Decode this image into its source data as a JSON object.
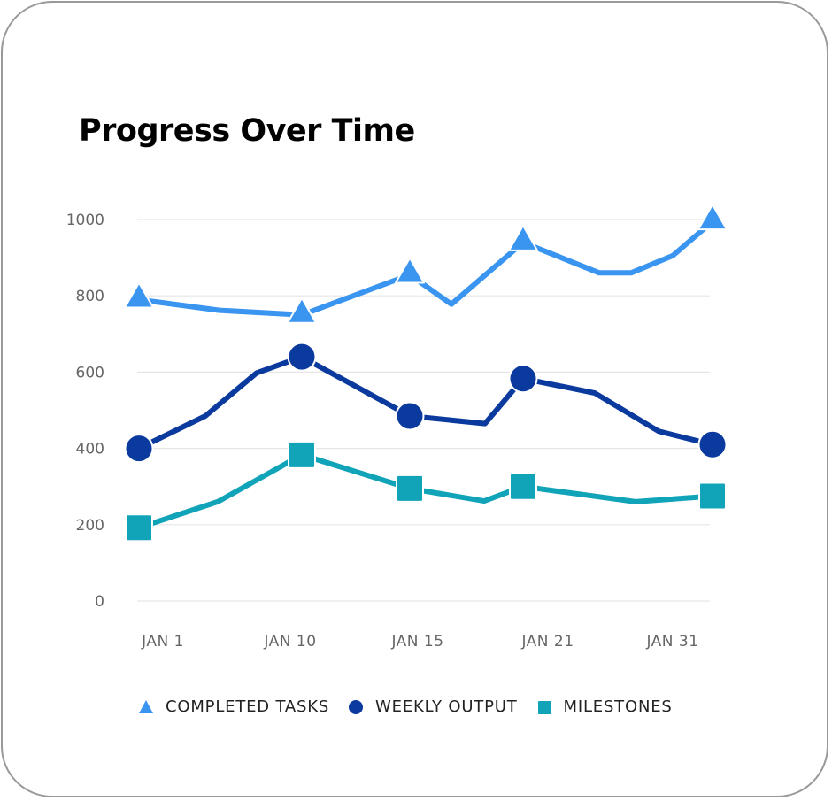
{
  "title": "Progress Over Time",
  "colors": {
    "completed_tasks": "#3a95f0",
    "weekly_output": "#0b3a9e",
    "milestones": "#11a4b9",
    "grid": "#e6e6e6",
    "axis_text": "#666666",
    "card_border": "#999999"
  },
  "legend": [
    {
      "label": "COMPLETED TASKS",
      "marker": "triangle-icon"
    },
    {
      "label": "WEEKLY OUTPUT",
      "marker": "circle-icon"
    },
    {
      "label": "MILESTONES",
      "marker": "square-icon"
    }
  ],
  "chart_data": {
    "type": "line",
    "title": "Progress Over Time",
    "xlabel": "",
    "ylabel": "",
    "ylim": [
      0,
      1000
    ],
    "yticks": [
      0,
      200,
      400,
      600,
      800,
      1000
    ],
    "categories": [
      "JAN 1",
      "JAN 10",
      "JAN 15",
      "JAN 21",
      "JAN 31"
    ],
    "grid": true,
    "legend_position": "bottom",
    "series": [
      {
        "name": "COMPLETED TASKS",
        "marker": "triangle",
        "color": "#3a95f0",
        "values": [
          790,
          750,
          855,
          940,
          995
        ],
        "path_points": [
          [
            157,
            790
          ],
          [
            248,
            762
          ],
          [
            341,
            750
          ],
          [
            463,
            855
          ],
          [
            510,
            778
          ],
          [
            591,
            940
          ],
          [
            677,
            860
          ],
          [
            713,
            860
          ],
          [
            760,
            905
          ],
          [
            805,
            995
          ]
        ]
      },
      {
        "name": "WEEKLY OUTPUT",
        "marker": "circle",
        "color": "#0b3a9e",
        "values": [
          400,
          640,
          485,
          583,
          410
        ],
        "path_points": [
          [
            157,
            400
          ],
          [
            232,
            485
          ],
          [
            290,
            598
          ],
          [
            341,
            640
          ],
          [
            463,
            485
          ],
          [
            548,
            465
          ],
          [
            591,
            583
          ],
          [
            672,
            545
          ],
          [
            744,
            445
          ],
          [
            805,
            410
          ]
        ]
      },
      {
        "name": "MILESTONES",
        "marker": "square",
        "color": "#11a4b9",
        "values": [
          192,
          383,
          295,
          300,
          275
        ],
        "path_points": [
          [
            157,
            192
          ],
          [
            246,
            260
          ],
          [
            341,
            383
          ],
          [
            463,
            295
          ],
          [
            547,
            262
          ],
          [
            591,
            300
          ],
          [
            718,
            260
          ],
          [
            805,
            275
          ]
        ]
      }
    ],
    "marker_x": [
      157,
      341,
      463,
      591,
      805
    ],
    "xtick_x": [
      184,
      328,
      472,
      619,
      760
    ]
  }
}
